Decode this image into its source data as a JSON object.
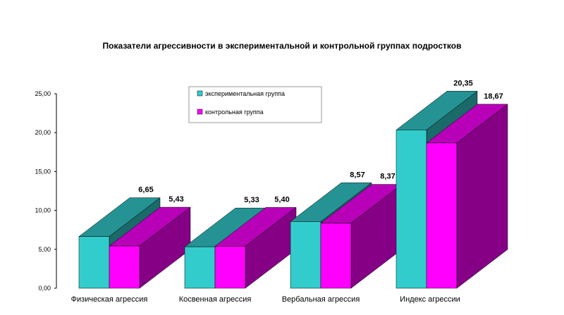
{
  "chart_data": {
    "type": "bar",
    "title": "Показатели агрессивности в экспериментальной и контрольной группах подростков",
    "categories": [
      "Физическая агрессия",
      "Косвенная агрессия",
      "Вербальная агрессия",
      "Индекс агрессии"
    ],
    "series": [
      {
        "name": "экспериментальная группа",
        "values": [
          6.65,
          5.33,
          8.57,
          20.35
        ],
        "labels": [
          "6,65",
          "5,33",
          "8,57",
          "20,35"
        ],
        "color": "#33cccc"
      },
      {
        "name": "контрольная группа",
        "values": [
          5.43,
          5.4,
          8.37,
          18.67
        ],
        "labels": [
          "5,43",
          "5,40",
          "8,37",
          "18,67"
        ],
        "color": "#ff00ff"
      }
    ],
    "ylim": [
      0,
      25
    ],
    "yticks": [
      "0,00",
      "5,00",
      "10,00",
      "15,00",
      "20,00",
      "25,00"
    ],
    "xlabel": "",
    "ylabel": "",
    "grid": false,
    "legend_position": "top-center",
    "style": "3d-bar"
  }
}
